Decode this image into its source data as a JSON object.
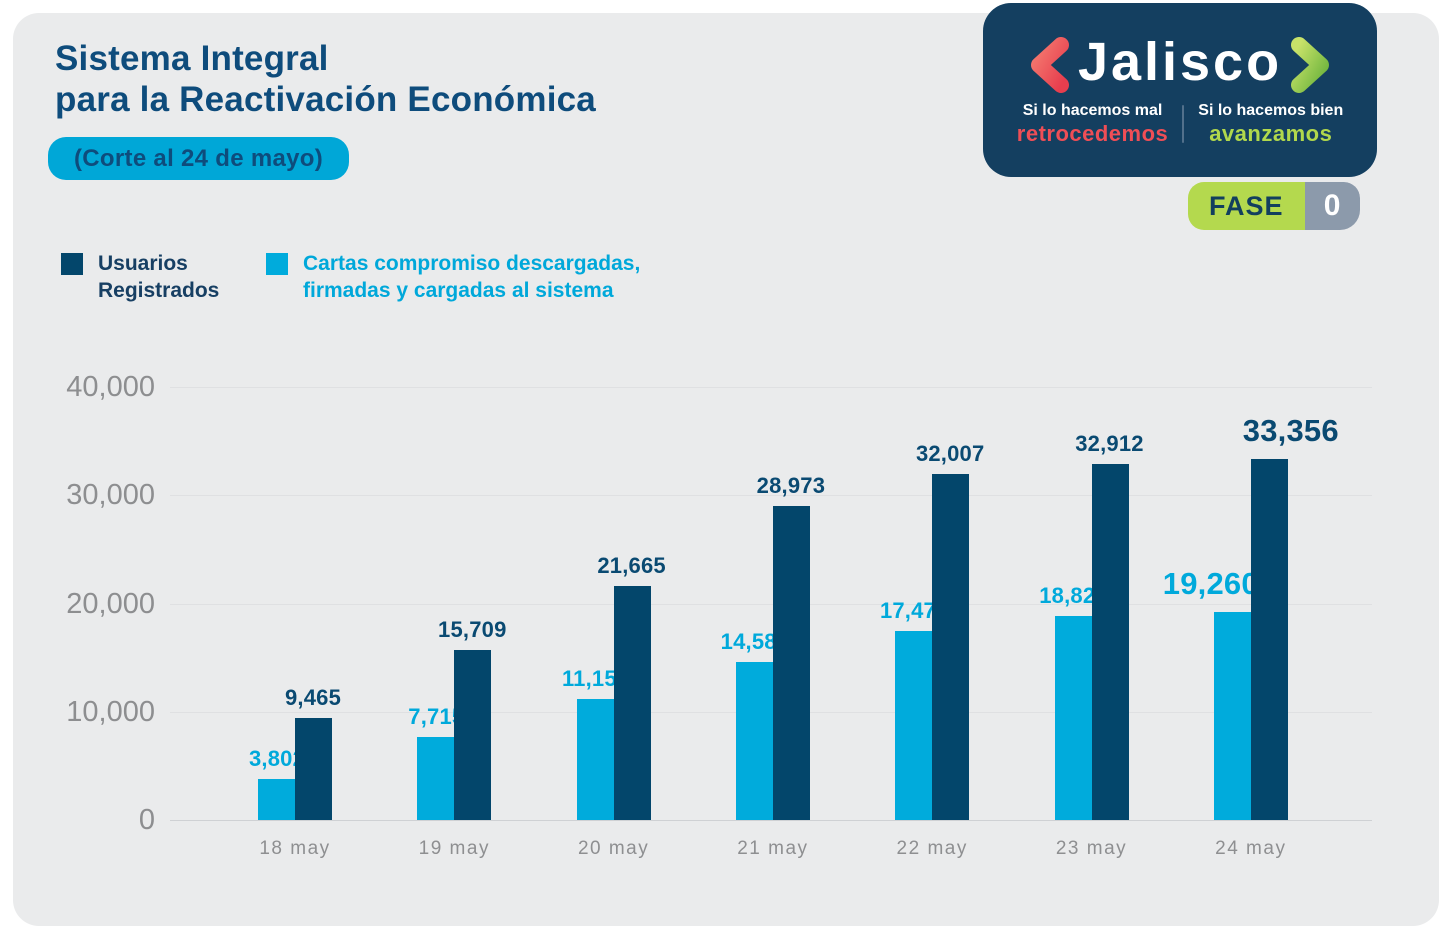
{
  "header": {
    "title_line1": "Sistema Integral",
    "title_line2": "para la Reactivación Económica",
    "badge": "(Corte al 24 de mayo)"
  },
  "logo": {
    "wordmark": "Jalisco",
    "tagline_left_line1": "Si lo hacemos mal",
    "tagline_left_line2": "retrocedemos",
    "tagline_right_line1": "Si lo hacemos bien",
    "tagline_right_line2": "avanzamos",
    "fase_label": "FASE",
    "fase_value": "0"
  },
  "legend": [
    {
      "line1": "Usuarios",
      "line2": "Registrados",
      "color": "#03466b"
    },
    {
      "line1": "Cartas compromiso descargadas,",
      "line2": "firmadas y cargadas al sistema",
      "color": "#00abdc"
    }
  ],
  "colors": {
    "navy_bar": "#03466b",
    "cyan_bar": "#00abdc",
    "title_navy": "#0e4c7c",
    "badge_cyan": "#00a7d7",
    "logo_navy": "#143f60",
    "red_accent": "#ef4e56",
    "green_accent": "#b1d84c",
    "fase_green": "#b4d94e",
    "fase_gray": "#8c9aab",
    "panel_gray": "#eaebec",
    "axis_gray": "#8d8e90"
  },
  "chart_data": {
    "type": "bar",
    "title": "Sistema Integral para la Reactivación Económica (Corte al 24 de mayo)",
    "categories": [
      "18 may",
      "19 may",
      "20 may",
      "21 may",
      "22 may",
      "23 may",
      "24 may"
    ],
    "series": [
      {
        "name": "Cartas compromiso descargadas, firmadas y cargadas al sistema",
        "slug": "cartas-compromiso",
        "side": "left",
        "color": "#00abdc",
        "label_color": "#00a9db",
        "values": [
          3802,
          7715,
          11155,
          14582,
          17471,
          18825,
          19260
        ],
        "labels": [
          "3,802",
          "7,715",
          "11,155",
          "14,582",
          "17,471",
          "18,825",
          "19,260"
        ]
      },
      {
        "name": "Usuarios Registrados",
        "slug": "usuarios-registrados",
        "side": "right",
        "color": "#03466b",
        "label_color": "#0a4a72",
        "values": [
          9465,
          15709,
          21665,
          28973,
          32007,
          32912,
          33356
        ],
        "labels": [
          "9,465",
          "15,709",
          "21,665",
          "28,973",
          "32,007",
          "32,912",
          "33,356"
        ]
      }
    ],
    "xlabel": "",
    "ylabel": "",
    "ylim": [
      0,
      40000
    ],
    "yticks": [
      {
        "v": 40000,
        "label": "40,000"
      },
      {
        "v": 30000,
        "label": "30,000"
      },
      {
        "v": 20000,
        "label": "20,000"
      },
      {
        "v": 10000,
        "label": "10,000"
      },
      {
        "v": 0,
        "label": "0"
      }
    ],
    "grid": true,
    "legend_position": "top-left",
    "emphasize_last_category": true
  }
}
